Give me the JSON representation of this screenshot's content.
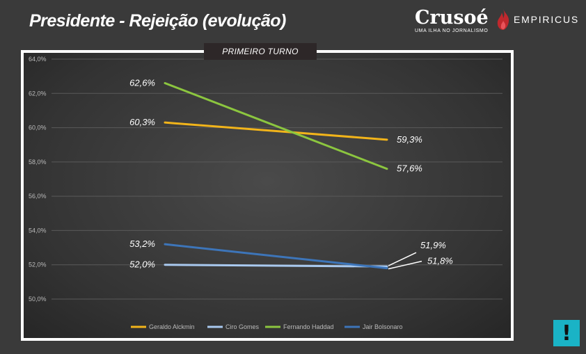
{
  "header": {
    "title": "Presidente -  Rejeição (evolução)",
    "brand_name": "Crusoé",
    "brand_tagline": "UMA ILHA NO JORNALISMO",
    "partner_name": "EMPIRICUS"
  },
  "badge": {
    "label": "!"
  },
  "chart_data": {
    "type": "line",
    "title": "",
    "subtitle": "PRIMEIRO TURNO",
    "xlabel": "",
    "ylabel": "",
    "ylim": [
      49,
      64
    ],
    "y_ticks": [
      "50,0%",
      "52,0%",
      "54,0%",
      "56,0%",
      "58,0%",
      "60,0%",
      "62,0%",
      "64,0%"
    ],
    "y_tick_values": [
      50,
      52,
      54,
      56,
      58,
      60,
      62,
      64
    ],
    "grid": true,
    "legend_position": "bottom",
    "x": [
      1,
      2
    ],
    "series": [
      {
        "name": "Geraldo Alckmin",
        "color": "#f2b41a",
        "values": [
          60.3,
          59.3
        ],
        "labels": [
          "60,3%",
          "59,3%"
        ]
      },
      {
        "name": "Ciro Gomes",
        "color": "#a9c9ef",
        "values": [
          52.0,
          51.9
        ],
        "labels": [
          "52,0%",
          "51,9%"
        ]
      },
      {
        "name": "Fernando Haddad",
        "color": "#8cc63f",
        "values": [
          62.6,
          57.6
        ],
        "labels": [
          "62,6%",
          "57,6%"
        ]
      },
      {
        "name": "Jair Bolsonaro",
        "color": "#3d75b9",
        "values": [
          53.2,
          51.8
        ],
        "labels": [
          "53,2%",
          "51,8%"
        ]
      }
    ]
  }
}
